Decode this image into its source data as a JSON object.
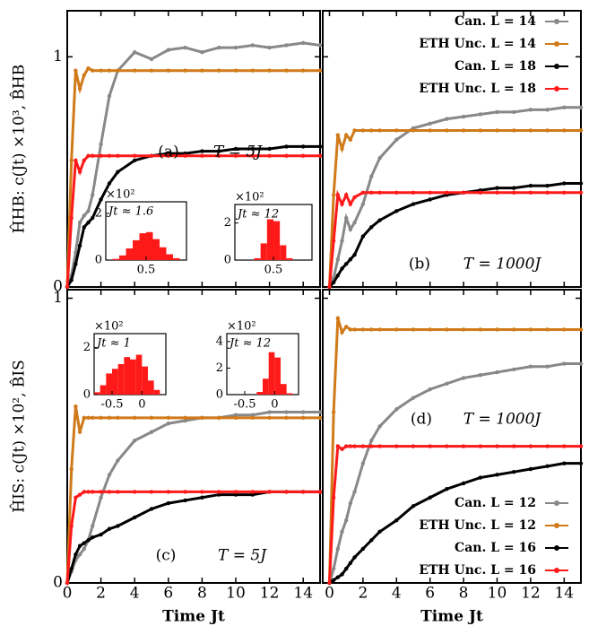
{
  "chart_data": [
    {
      "type": "line",
      "label": "(a)",
      "annotation": "T = 5J",
      "ylabel": "ĤHB: c(Jt) ×10³, B̂HB",
      "x": [
        0,
        0.25,
        0.5,
        0.75,
        1,
        1.25,
        1.5,
        2,
        2.5,
        3,
        4,
        5,
        6,
        7,
        8,
        9,
        10,
        11,
        12,
        13,
        14,
        15
      ],
      "series": [
        {
          "color": "#888888",
          "values": [
            0,
            0.05,
            0.15,
            0.28,
            0.31,
            0.33,
            0.4,
            0.62,
            0.83,
            0.94,
            1.02,
            0.99,
            1.03,
            1.04,
            1.02,
            1.04,
            1.04,
            1.05,
            1.04,
            1.05,
            1.06,
            1.05
          ]
        },
        {
          "color": "#d07a1a",
          "values": [
            0,
            0.55,
            0.94,
            0.86,
            0.92,
            0.95,
            0.94,
            0.94,
            0.94,
            0.94,
            0.94,
            0.94,
            0.94,
            0.94,
            0.94,
            0.94,
            0.94,
            0.94,
            0.94,
            0.94,
            0.94,
            0.94
          ]
        },
        {
          "color": "#000000",
          "values": [
            0,
            0.03,
            0.1,
            0.18,
            0.26,
            0.28,
            0.3,
            0.38,
            0.45,
            0.5,
            0.55,
            0.57,
            0.58,
            0.58,
            0.59,
            0.59,
            0.6,
            0.6,
            0.6,
            0.61,
            0.61,
            0.61
          ]
        },
        {
          "color": "#ff1a1a",
          "values": [
            0,
            0.3,
            0.55,
            0.5,
            0.55,
            0.57,
            0.57,
            0.57,
            0.57,
            0.57,
            0.57,
            0.57,
            0.57,
            0.57,
            0.57,
            0.57,
            0.57,
            0.57,
            0.57,
            0.57,
            0.57,
            0.57
          ]
        }
      ],
      "xlim": [
        0,
        15
      ],
      "ylim": [
        0,
        1.2
      ],
      "xticks": [
        0,
        2,
        4,
        6,
        8,
        10,
        12,
        14
      ],
      "yticks": [
        0,
        1
      ],
      "x_tick_labels": false,
      "y_tick_labels": true,
      "insets": [
        {
          "label": "Jt ≈ 1.6",
          "multiplier": "×10²",
          "color": "#ff1a1a",
          "bins": [
            0.2,
            0.25,
            0.3,
            0.35,
            0.4,
            0.45,
            0.5,
            0.55,
            0.6,
            0.65,
            0.7,
            0.75,
            0.8
          ],
          "counts": [
            0,
            0.05,
            0.2,
            0.5,
            0.85,
            1.15,
            1.2,
            0.9,
            0.55,
            0.25,
            0.08,
            0
          ],
          "xlim": [
            0.2,
            0.8
          ],
          "ylim": [
            0,
            2.5
          ],
          "xticks": [
            0.5
          ],
          "yticks": [
            0,
            2
          ]
        },
        {
          "label": "Jt ≈ 12",
          "multiplier": "×10²",
          "color": "#ff1a1a",
          "bins": [
            0.2,
            0.25,
            0.3,
            0.35,
            0.4,
            0.45,
            0.5,
            0.55,
            0.6,
            0.65,
            0.7,
            0.75,
            0.8
          ],
          "counts": [
            0,
            0,
            0,
            0.1,
            0.9,
            2.2,
            2.1,
            0.8,
            0.1,
            0,
            0,
            0
          ],
          "xlim": [
            0.2,
            0.8
          ],
          "ylim": [
            0,
            3
          ],
          "xticks": [
            0.5
          ],
          "yticks": [
            0,
            2
          ]
        }
      ]
    },
    {
      "type": "line",
      "label": "(b)",
      "annotation": "T = 1000J",
      "x": [
        0,
        0.25,
        0.5,
        0.75,
        1,
        1.25,
        1.5,
        2,
        2.5,
        3,
        4,
        5,
        6,
        7,
        8,
        9,
        10,
        11,
        12,
        13,
        14,
        15
      ],
      "series": [
        {
          "name": "Can. L = 14",
          "color": "#888888",
          "values": [
            0,
            0.04,
            0.12,
            0.2,
            0.3,
            0.25,
            0.28,
            0.36,
            0.48,
            0.56,
            0.64,
            0.69,
            0.71,
            0.73,
            0.74,
            0.75,
            0.76,
            0.76,
            0.77,
            0.77,
            0.78,
            0.78
          ]
        },
        {
          "name": "ETH Unc. L = 14",
          "color": "#d07a1a",
          "values": [
            0,
            0.4,
            0.66,
            0.6,
            0.66,
            0.64,
            0.68,
            0.68,
            0.68,
            0.68,
            0.68,
            0.68,
            0.68,
            0.68,
            0.68,
            0.68,
            0.68,
            0.68,
            0.68,
            0.68,
            0.68,
            0.68
          ]
        },
        {
          "name": "Can. L = 18",
          "color": "#000000",
          "values": [
            0,
            0.02,
            0.05,
            0.08,
            0.1,
            0.12,
            0.14,
            0.22,
            0.26,
            0.29,
            0.33,
            0.36,
            0.38,
            0.4,
            0.41,
            0.42,
            0.43,
            0.43,
            0.44,
            0.44,
            0.45,
            0.45
          ]
        },
        {
          "name": "ETH Unc. L = 18",
          "color": "#ff1a1a",
          "values": [
            0,
            0.2,
            0.4,
            0.36,
            0.4,
            0.36,
            0.39,
            0.41,
            0.41,
            0.41,
            0.41,
            0.41,
            0.41,
            0.41,
            0.41,
            0.41,
            0.41,
            0.41,
            0.41,
            0.41,
            0.41,
            0.41
          ]
        }
      ],
      "xlim": [
        -0.4,
        15
      ],
      "ylim": [
        0,
        1.2
      ],
      "xticks": [
        0,
        2,
        4,
        6,
        8,
        10,
        12,
        14
      ],
      "yticks": [
        0,
        1
      ],
      "x_tick_labels": false,
      "y_tick_labels": false,
      "legend": "upper right"
    },
    {
      "type": "line",
      "label": "(c)",
      "annotation": "T = 5J",
      "ylabel": "ĤIS: c(Jt) ×10², B̂IS",
      "xlabel": "Time Jt",
      "x": [
        0,
        0.25,
        0.5,
        0.75,
        1,
        1.25,
        1.5,
        2,
        2.5,
        3,
        4,
        5,
        6,
        7,
        8,
        9,
        10,
        11,
        12,
        13,
        14,
        15
      ],
      "series": [
        {
          "color": "#888888",
          "values": [
            0,
            0.04,
            0.08,
            0.1,
            0.12,
            0.15,
            0.2,
            0.3,
            0.38,
            0.43,
            0.5,
            0.53,
            0.56,
            0.57,
            0.58,
            0.58,
            0.59,
            0.59,
            0.6,
            0.6,
            0.6,
            0.6
          ]
        },
        {
          "color": "#d07a1a",
          "values": [
            0,
            0.4,
            0.62,
            0.53,
            0.58,
            0.58,
            0.58,
            0.58,
            0.58,
            0.58,
            0.58,
            0.58,
            0.58,
            0.58,
            0.58,
            0.58,
            0.58,
            0.58,
            0.58,
            0.58,
            0.58,
            0.58
          ]
        },
        {
          "color": "#000000",
          "values": [
            0,
            0.05,
            0.1,
            0.13,
            0.14,
            0.15,
            0.16,
            0.17,
            0.19,
            0.2,
            0.23,
            0.26,
            0.28,
            0.29,
            0.3,
            0.31,
            0.31,
            0.31,
            0.32,
            0.32,
            0.32,
            0.32
          ]
        },
        {
          "color": "#ff1a1a",
          "values": [
            0,
            0.2,
            0.3,
            0.31,
            0.32,
            0.32,
            0.32,
            0.32,
            0.32,
            0.32,
            0.32,
            0.32,
            0.32,
            0.32,
            0.32,
            0.32,
            0.32,
            0.32,
            0.32,
            0.32,
            0.32,
            0.32
          ]
        }
      ],
      "xlim": [
        0,
        15
      ],
      "ylim": [
        0,
        1.03
      ],
      "xticks": [
        0,
        2,
        4,
        6,
        8,
        10,
        12,
        14
      ],
      "yticks": [
        0,
        1
      ],
      "x_tick_labels": true,
      "y_tick_labels": true,
      "insets": [
        {
          "label": "Jt ≈ 1",
          "multiplier": "×10²",
          "color": "#ff1a1a",
          "bins": [
            -0.8,
            -0.7,
            -0.6,
            -0.5,
            -0.4,
            -0.3,
            -0.2,
            -0.1,
            0,
            0.1,
            0.2,
            0.3,
            0.4
          ],
          "counts": [
            0.1,
            0.4,
            0.9,
            1.1,
            1.3,
            1.6,
            1.5,
            1.7,
            1.2,
            0.6,
            0.2,
            0
          ],
          "xlim": [
            -0.8,
            0.4
          ],
          "ylim": [
            0,
            2.6
          ],
          "xticks": [
            -0.5,
            0
          ],
          "yticks": [
            0,
            2
          ]
        },
        {
          "label": "Jt ≈ 12",
          "multiplier": "×10²",
          "color": "#ff1a1a",
          "bins": [
            -0.8,
            -0.7,
            -0.6,
            -0.5,
            -0.4,
            -0.3,
            -0.2,
            -0.1,
            0,
            0.1,
            0.2,
            0.3,
            0.4
          ],
          "counts": [
            0,
            0,
            0,
            0,
            0,
            0.2,
            1.2,
            3.2,
            2.8,
            0.8,
            0.1,
            0
          ],
          "xlim": [
            -0.8,
            0.4
          ],
          "ylim": [
            0,
            4.6
          ],
          "xticks": [
            -0.5,
            0
          ],
          "yticks": [
            0,
            2,
            4
          ]
        }
      ]
    },
    {
      "type": "line",
      "label": "(d)",
      "annotation": "T = 1000J",
      "xlabel": "Time Jt",
      "x": [
        0,
        0.25,
        0.5,
        0.75,
        1,
        1.25,
        1.5,
        2,
        2.5,
        3,
        4,
        5,
        6,
        7,
        8,
        9,
        10,
        11,
        12,
        13,
        14,
        15
      ],
      "series": [
        {
          "name": "Can. L = 12",
          "color": "#888888",
          "values": [
            0,
            0.05,
            0.12,
            0.18,
            0.22,
            0.28,
            0.32,
            0.42,
            0.5,
            0.55,
            0.61,
            0.65,
            0.68,
            0.7,
            0.72,
            0.73,
            0.74,
            0.75,
            0.76,
            0.76,
            0.77,
            0.77
          ]
        },
        {
          "name": "ETH Unc. L = 12",
          "color": "#d07a1a",
          "values": [
            0,
            0.6,
            0.93,
            0.88,
            0.9,
            0.89,
            0.89,
            0.89,
            0.89,
            0.89,
            0.89,
            0.89,
            0.89,
            0.89,
            0.89,
            0.89,
            0.89,
            0.89,
            0.89,
            0.89,
            0.89,
            0.89
          ]
        },
        {
          "name": "Can. L = 16",
          "color": "#000000",
          "values": [
            0,
            0.01,
            0.02,
            0.03,
            0.05,
            0.07,
            0.09,
            0.12,
            0.15,
            0.18,
            0.22,
            0.27,
            0.3,
            0.33,
            0.35,
            0.37,
            0.38,
            0.39,
            0.4,
            0.41,
            0.42,
            0.42
          ]
        },
        {
          "name": "ETH Unc. L = 16",
          "color": "#ff1a1a",
          "values": [
            0,
            0.3,
            0.48,
            0.47,
            0.48,
            0.48,
            0.48,
            0.48,
            0.48,
            0.48,
            0.48,
            0.48,
            0.48,
            0.48,
            0.48,
            0.48,
            0.48,
            0.48,
            0.48,
            0.48,
            0.48,
            0.48
          ]
        }
      ],
      "xlim": [
        -0.4,
        15
      ],
      "ylim": [
        0,
        1.03
      ],
      "xticks": [
        0,
        2,
        4,
        6,
        8,
        10,
        12,
        14
      ],
      "yticks": [
        0,
        1
      ],
      "x_tick_labels": true,
      "y_tick_labels": false,
      "legend": "lower right"
    }
  ]
}
